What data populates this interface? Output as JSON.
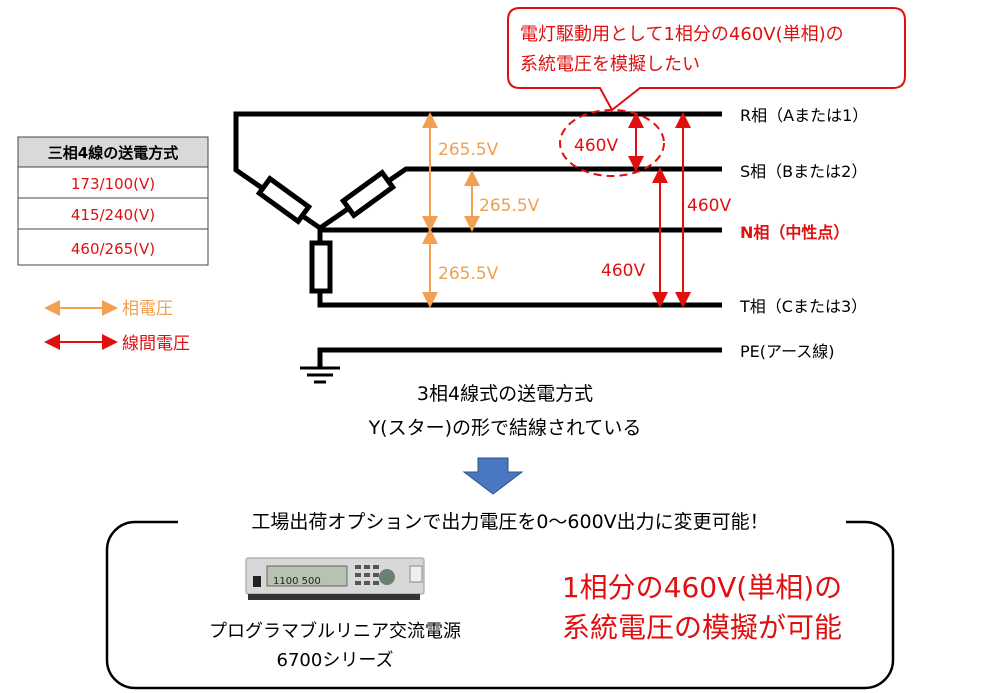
{
  "callout": {
    "line1": "電灯駆動用として1相分の460V(単相)の",
    "line2": "系統電圧を模擬したい"
  },
  "table": {
    "header": "三相4線の送電方式",
    "rows": [
      "173/100(V)",
      "415/240(V)",
      "460/265(V)"
    ]
  },
  "legend": {
    "phase_voltage": "相電圧",
    "line_voltage": "線間電圧"
  },
  "lines": {
    "r": "R相（Aまたは1）",
    "s": "S相（Bまたは2）",
    "n": "N相（中性点）",
    "t": "T相（Cまたは3）",
    "pe": "PE(アース線)"
  },
  "voltages": {
    "phase1": "265.5V",
    "phase2": "265.5V",
    "phase3": "265.5V",
    "rs": "460V",
    "st": "460V",
    "rt": "460V"
  },
  "caption": {
    "line1": "3相4線式の送電方式",
    "line2": "Y(スター)の形で結線されている"
  },
  "bottom": {
    "heading": "工場出荷オプションで出力電圧を0～600V出力に変更可能！",
    "device_name": "プログラマブルリニア交流電源",
    "device_series": "6700シリーズ",
    "device_display": "1100  500",
    "highlight1": "1相分の460V(単相)の",
    "highlight2": "系統電圧の模擬が可能"
  },
  "colors": {
    "phase": "#f0a050",
    "line": "#e01010",
    "arrow": "#4a78c0"
  }
}
